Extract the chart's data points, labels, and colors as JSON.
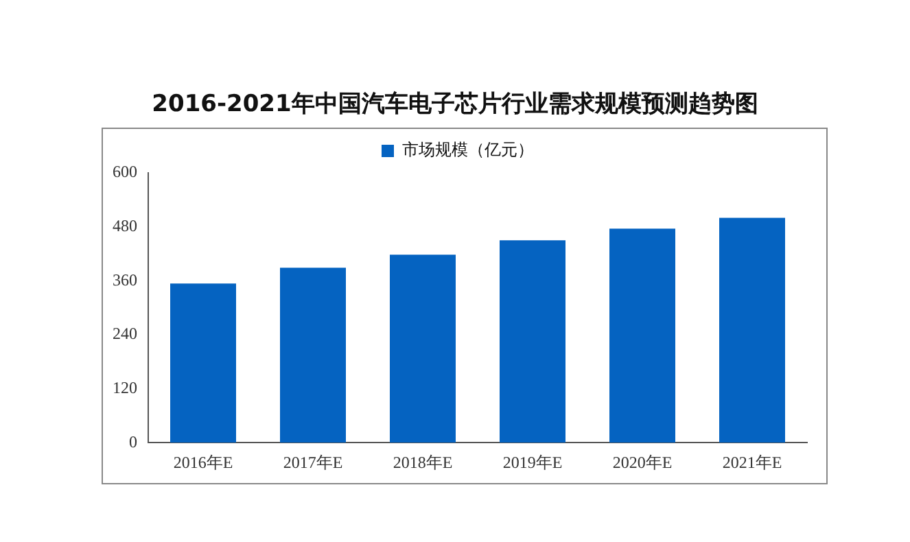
{
  "chart_data": {
    "type": "bar",
    "title": "2016-2021年中国汽车电子芯片行业需求规模预测趋势图",
    "categories": [
      "2016年E",
      "2017年E",
      "2018年E",
      "2019年E",
      "2020年E",
      "2021年E"
    ],
    "series": [
      {
        "name": "市场规模（亿元）",
        "color": "#0563c1",
        "values": [
          354,
          389,
          418,
          450,
          476,
          500
        ]
      }
    ],
    "ylim": [
      0,
      600
    ],
    "yticks": [
      0,
      120,
      240,
      360,
      480,
      600
    ],
    "grid": false,
    "legend": "top"
  }
}
